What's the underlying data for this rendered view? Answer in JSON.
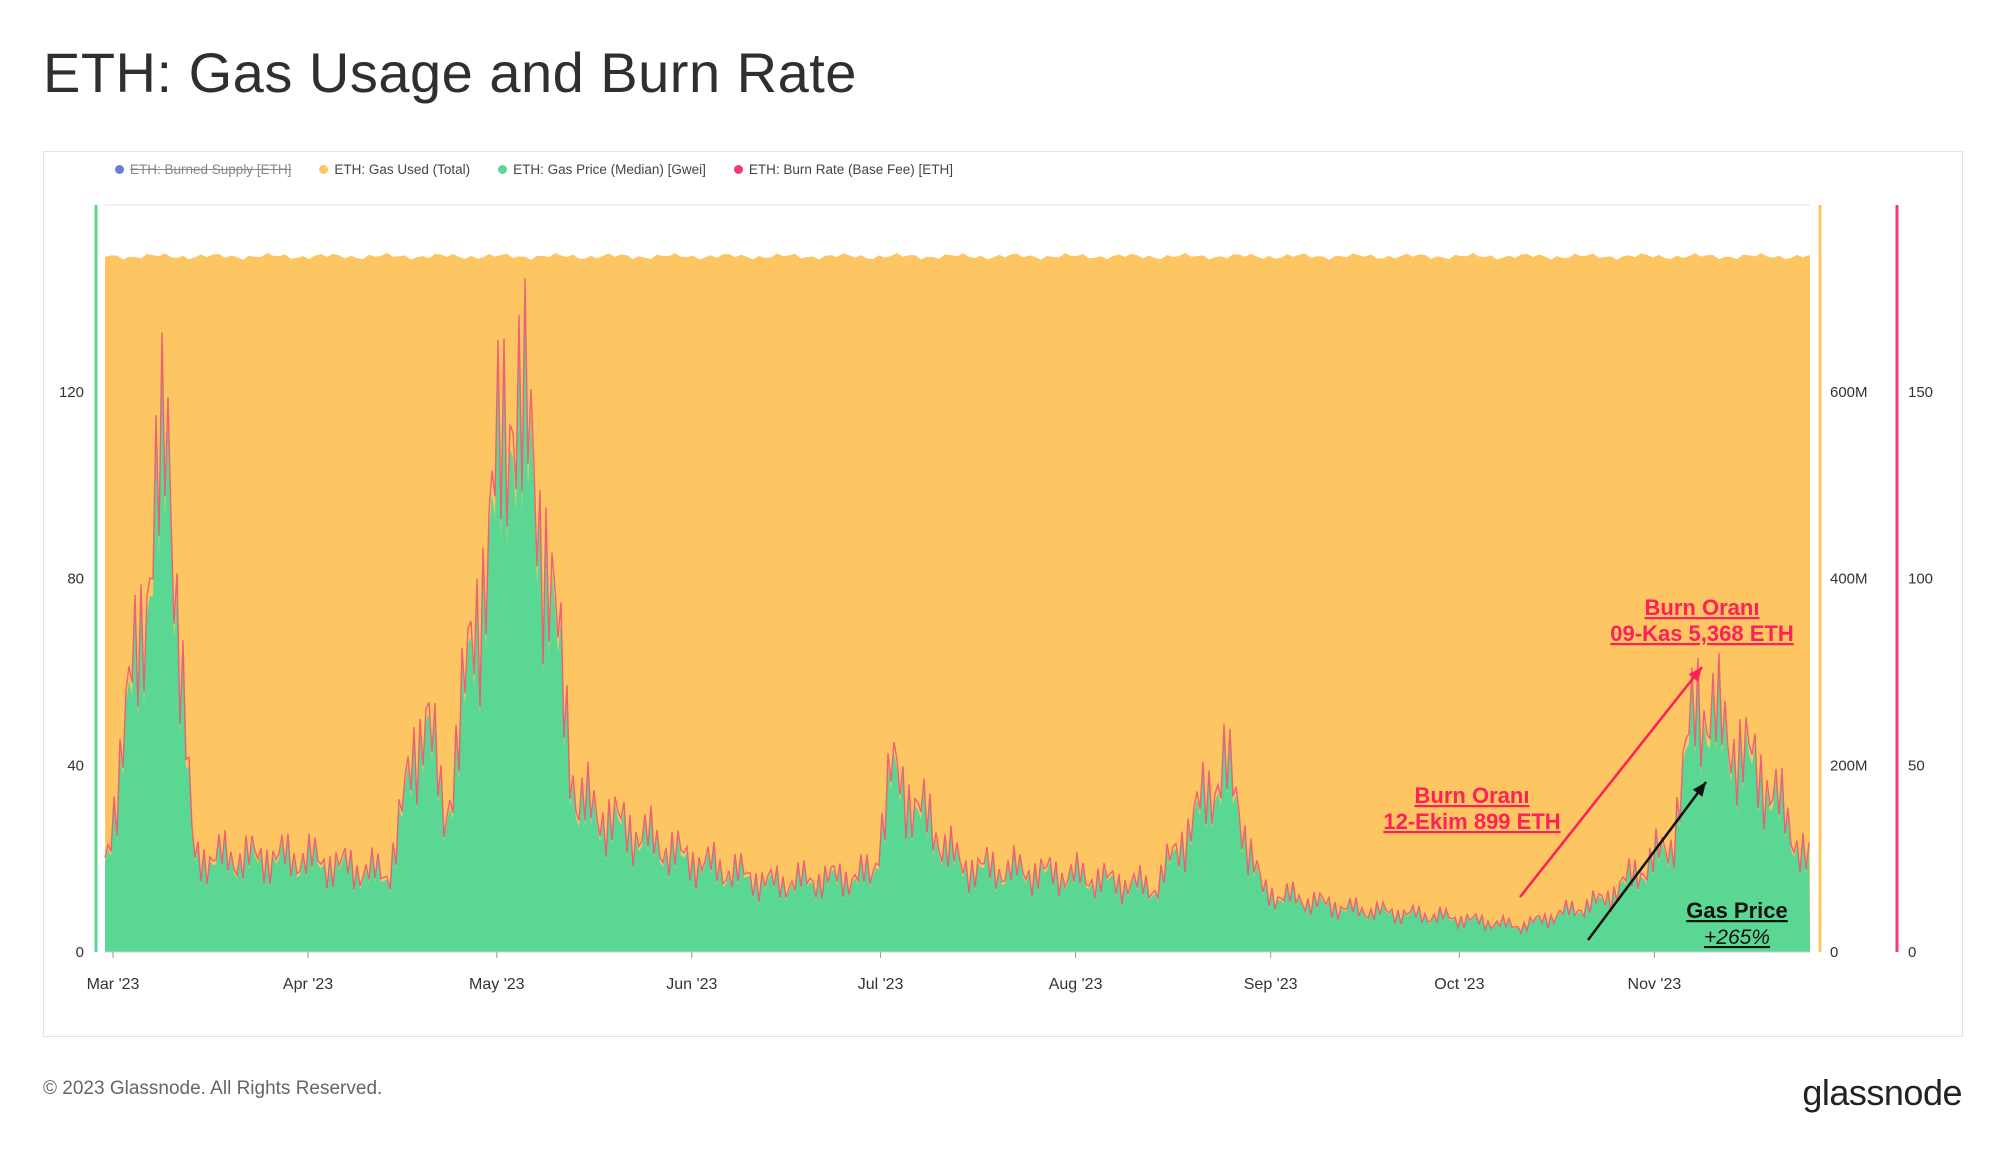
{
  "title": "ETH: Gas Usage and Burn Rate",
  "footer": "© 2023 Glassnode. All Rights Reserved.",
  "brand": "glassnode",
  "colors": {
    "burned_supply": "#6b7fd7",
    "gas_used": "#fdc662",
    "gas_price": "#5ad893",
    "burn_rate": "#ee3d7a",
    "annotation_red": "#ff1f5a",
    "annotation_black": "#111111"
  },
  "chart_data": {
    "type": "area",
    "legend": [
      {
        "label": "ETH: Burned Supply [ETH]",
        "color": "#6b7fd7",
        "disabled": true
      },
      {
        "label": "ETH: Gas Used (Total)",
        "color": "#fdc662",
        "disabled": false
      },
      {
        "label": "ETH: Gas Price (Median) [Gwei]",
        "color": "#5ad893",
        "disabled": false
      },
      {
        "label": "ETH: Burn Rate (Base Fee) [ETH]",
        "color": "#ee3d7a",
        "disabled": false
      }
    ],
    "x_ticks": [
      "Mar '23",
      "Apr '23",
      "May '23",
      "Jun '23",
      "Jul '23",
      "Aug '23",
      "Sep '23",
      "Oct '23",
      "Nov '23"
    ],
    "x_range": [
      "2023-03-01",
      "2023-11-27"
    ],
    "left_axis": {
      "ticks": [
        "0",
        "40",
        "80",
        "120"
      ],
      "values": [
        0,
        40,
        80,
        120
      ],
      "range": [
        0,
        160
      ]
    },
    "right_axis_1": {
      "ticks": [
        "0",
        "200M",
        "400M",
        "600M"
      ],
      "values": [
        0,
        200,
        400,
        600
      ],
      "range": [
        0,
        800
      ]
    },
    "right_axis_2": {
      "ticks": [
        "0",
        "50",
        "100",
        "150"
      ],
      "values": [
        0,
        50,
        100,
        150
      ],
      "range": [
        0,
        200
      ]
    },
    "gas_used_level_M": 745,
    "gas_price_monthly": [
      {
        "x": "2023-03-01",
        "y": 20
      },
      {
        "x": "2023-03-11",
        "y": 120
      },
      {
        "x": "2023-03-15",
        "y": 22
      },
      {
        "x": "2023-04-01",
        "y": 22
      },
      {
        "x": "2023-04-15",
        "y": 18
      },
      {
        "x": "2023-04-21",
        "y": 58
      },
      {
        "x": "2023-04-24",
        "y": 30
      },
      {
        "x": "2023-05-05",
        "y": 135
      },
      {
        "x": "2023-05-10",
        "y": 95
      },
      {
        "x": "2023-05-15",
        "y": 35
      },
      {
        "x": "2023-06-01",
        "y": 22
      },
      {
        "x": "2023-06-15",
        "y": 16
      },
      {
        "x": "2023-07-01",
        "y": 18
      },
      {
        "x": "2023-07-04",
        "y": 42
      },
      {
        "x": "2023-07-15",
        "y": 20
      },
      {
        "x": "2023-08-01",
        "y": 18
      },
      {
        "x": "2023-08-15",
        "y": 15
      },
      {
        "x": "2023-08-26",
        "y": 44
      },
      {
        "x": "2023-09-01",
        "y": 14
      },
      {
        "x": "2023-09-15",
        "y": 10
      },
      {
        "x": "2023-10-01",
        "y": 8
      },
      {
        "x": "2023-10-12",
        "y": 6
      },
      {
        "x": "2023-10-25",
        "y": 12
      },
      {
        "x": "2023-11-05",
        "y": 25
      },
      {
        "x": "2023-11-09",
        "y": 60
      },
      {
        "x": "2023-11-13",
        "y": 52
      },
      {
        "x": "2023-11-20",
        "y": 40
      },
      {
        "x": "2023-11-27",
        "y": 20
      }
    ],
    "annotations": [
      {
        "lines": [
          "Burn Oranı",
          "12-Ekim 899 ETH"
        ],
        "color": "#ff1f5a"
      },
      {
        "lines": [
          "Burn Oranı",
          "09-Kas 5,368 ETH"
        ],
        "color": "#ff1f5a"
      },
      {
        "lines": [
          "Gas Price",
          "+265%"
        ],
        "color": "#111111"
      }
    ]
  }
}
